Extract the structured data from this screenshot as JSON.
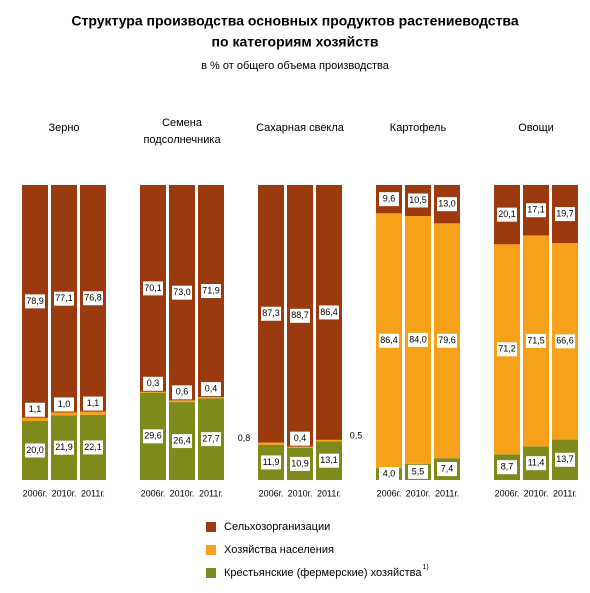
{
  "chart_data": {
    "type": "bar",
    "stacked": true,
    "title": [
      "Структура производства основных продуктов растениеводства",
      "по категориям хозяйств"
    ],
    "subtitle": "в % от общего объема производства",
    "groups": [
      "Зерно",
      "Семена подсолнечника",
      "Сахарная свекла",
      "Картофель",
      "Овощи"
    ],
    "categories": [
      "2006г.",
      "2010г.",
      "2011г.",
      "2006г.",
      "2010г.",
      "2011г.",
      "2006г.",
      "2010г.",
      "2011г.",
      "2006г.",
      "2010г.",
      "2011г.",
      "2006г.",
      "2010г.",
      "2011г."
    ],
    "ylim": [
      0,
      100
    ],
    "series": [
      {
        "name": "Крестьянские (фермерские) хозяйства",
        "color": "#7e8a1c",
        "values": [
          20.0,
          21.9,
          22.1,
          29.6,
          26.4,
          27.7,
          11.9,
          10.9,
          13.1,
          4.0,
          5.5,
          7.4,
          8.7,
          11.4,
          13.7
        ],
        "value_labels": [
          "20,0",
          "21,9",
          "22,1",
          "29,6",
          "26,4",
          "27,7",
          "11,9",
          "10,9",
          "13,1",
          "4,0",
          "5,5",
          "7,4",
          "8,7",
          "11,4",
          "13,7"
        ]
      },
      {
        "name": "Хозяйства населения",
        "color": "#f7a11a",
        "values": [
          1.1,
          1.0,
          1.1,
          0.3,
          0.6,
          0.4,
          0.8,
          0.4,
          0.5,
          86.4,
          84.0,
          79.6,
          71.2,
          71.5,
          66.6
        ],
        "value_labels": [
          "1,1",
          "1,0",
          "1,1",
          "0,3",
          "0,6",
          "0,4",
          "0,8",
          "0,4",
          "0,5",
          "86,4",
          "84,0",
          "79,6",
          "71,2",
          "71,5",
          "66,6"
        ]
      },
      {
        "name": "Сельхозорганизации",
        "color": "#9a3a0e",
        "values": [
          78.9,
          77.1,
          76.8,
          70.1,
          73.0,
          71.9,
          87.3,
          88.7,
          86.4,
          9.6,
          10.5,
          13.0,
          20.1,
          17.1,
          19.7
        ],
        "value_labels": [
          "78,9",
          "77,1",
          "76,8",
          "70,1",
          "73,0",
          "71,9",
          "87,3",
          "88,7",
          "86,4",
          "9,6",
          "10,5",
          "13,0",
          "20,1",
          "17,1",
          "19,7"
        ]
      }
    ],
    "legend_order": [
      2,
      1,
      0
    ],
    "footnote_mark": "1)"
  }
}
